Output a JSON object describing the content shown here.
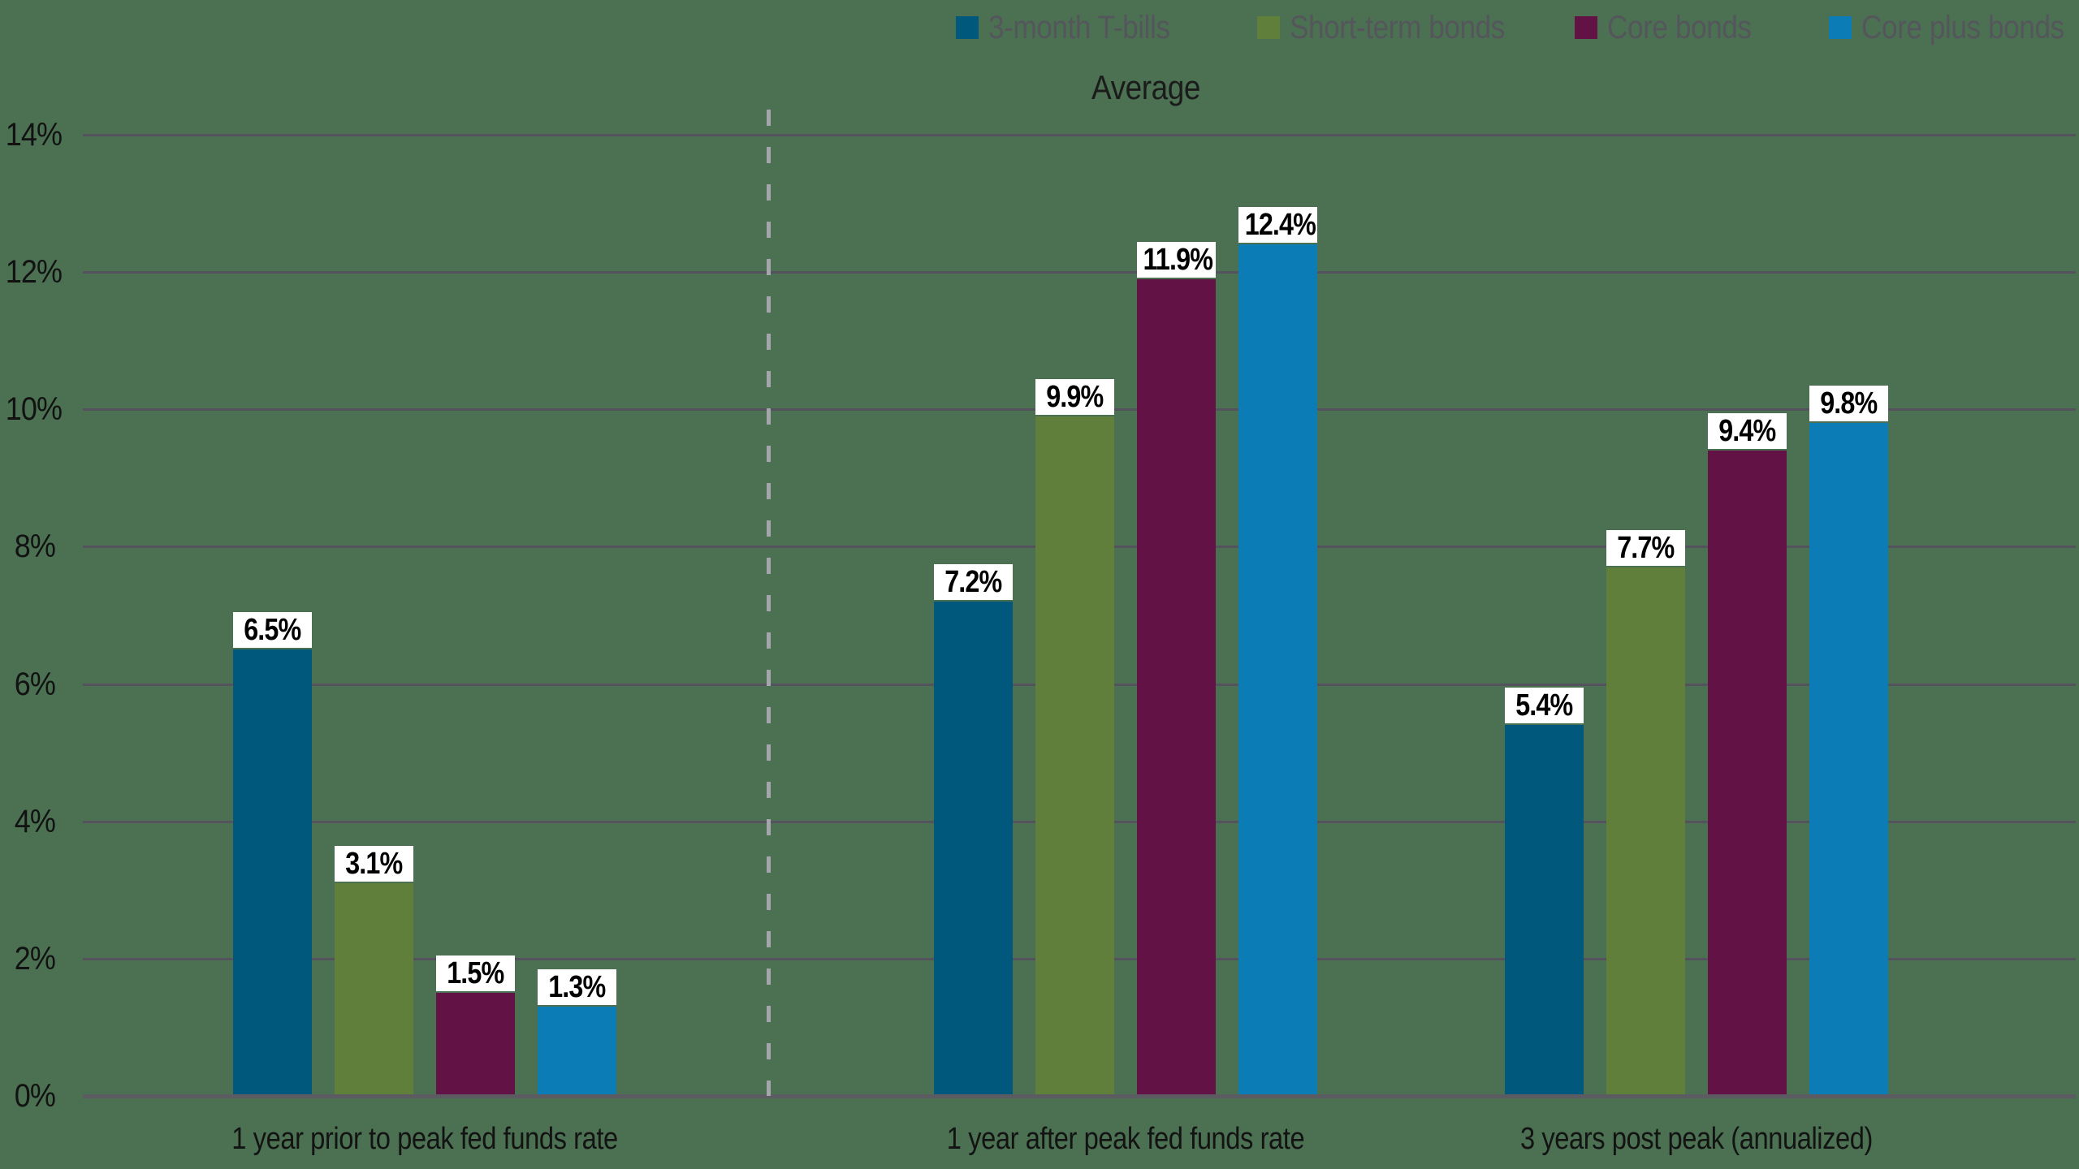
{
  "title": "Average",
  "legend": {
    "items": [
      {
        "label": "3-month T-bills",
        "color": "#00587c"
      },
      {
        "label": "Short-term bonds",
        "color": "#5f7f3a"
      },
      {
        "label": "Core bonds",
        "color": "#621245"
      },
      {
        "label": "Core plus bonds",
        "color": "#0b7cb5"
      }
    ]
  },
  "chart_data": {
    "type": "bar",
    "title": "Average",
    "categories": [
      "1 year prior to peak fed funds rate",
      "1 year after peak fed funds rate",
      "3 years post peak (annualized)"
    ],
    "series": [
      {
        "name": "3-month T-bills",
        "color": "#00587c",
        "values": [
          6.5,
          7.2,
          5.4
        ]
      },
      {
        "name": "Short-term bonds",
        "color": "#5f7f3a",
        "values": [
          3.1,
          9.9,
          7.7
        ]
      },
      {
        "name": "Core bonds",
        "color": "#621245",
        "values": [
          1.5,
          11.9,
          9.4
        ]
      },
      {
        "name": "Core plus bonds",
        "color": "#0b7cb5",
        "values": [
          1.3,
          12.4,
          9.8
        ]
      }
    ],
    "data_labels": [
      [
        "6.5%",
        "3.1%",
        "1.5%",
        "1.3%"
      ],
      [
        "7.2%",
        "9.9%",
        "11.9%",
        "12.4%"
      ],
      [
        "5.4%",
        "7.7%",
        "9.4%",
        "9.8%"
      ]
    ],
    "ylabel": "",
    "xlabel": "",
    "y_axis": {
      "min": 0,
      "max": 14,
      "tick_step": 2,
      "tick_labels": [
        "0%",
        "2%",
        "4%",
        "6%",
        "8%",
        "10%",
        "12%",
        "14%"
      ]
    },
    "grid": true,
    "legend_position": "top-right",
    "separator_after_category_index": 0,
    "colors": {
      "background": "#4b7152",
      "gridline": "#54535d",
      "baseline": "#5c5b62",
      "separator_dash": "#a4a6ac",
      "legend_text": "#54565c",
      "axis_text": "#121212",
      "data_label_bg": "#ffffff",
      "data_label_text": "#000000"
    }
  }
}
